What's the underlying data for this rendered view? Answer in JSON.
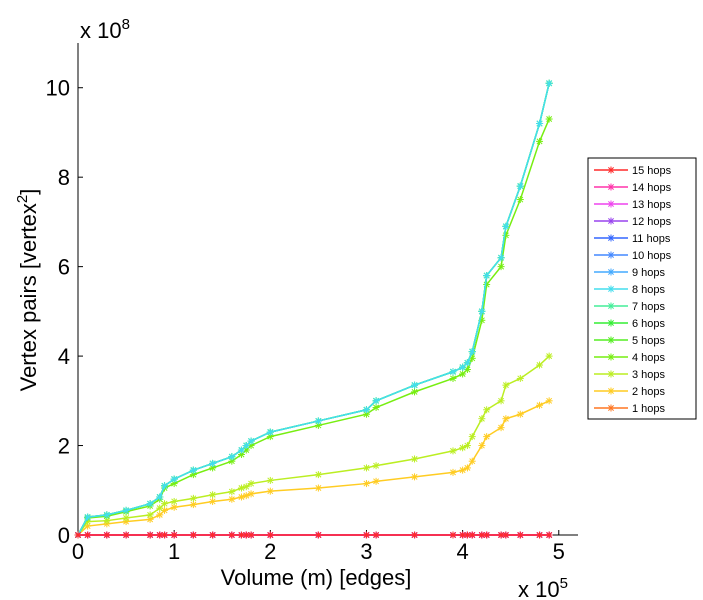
{
  "chart_data": {
    "type": "line",
    "xlabel": "Volume (m) [edges]",
    "ylabel": "Vertex pairs [vertex",
    "ylabel_sup": "2",
    "ylabel_close": "]",
    "x_multiplier": "x 10",
    "x_multiplier_exp": "5",
    "y_multiplier": "x 10",
    "y_multiplier_exp": "8",
    "xlim": [
      0,
      5.2
    ],
    "ylim": [
      0,
      11
    ],
    "xticks": [
      0,
      1,
      2,
      3,
      4,
      5
    ],
    "xtick_labels": [
      "0",
      "1",
      "2",
      "3",
      "4",
      "5"
    ],
    "yticks": [
      0,
      2,
      4,
      6,
      8,
      10
    ],
    "ytick_labels": [
      "0",
      "2",
      "4",
      "6",
      "8",
      "10"
    ],
    "grid": false,
    "legend_position": "right",
    "x": [
      0,
      0.1,
      0.3,
      0.5,
      0.75,
      0.85,
      0.9,
      1.0,
      1.2,
      1.4,
      1.6,
      1.7,
      1.75,
      1.8,
      2.0,
      2.5,
      3.0,
      3.1,
      3.5,
      3.9,
      4.0,
      4.05,
      4.1,
      4.2,
      4.25,
      4.4,
      4.45,
      4.6,
      4.8,
      4.9
    ],
    "series": [
      {
        "name": "15 hops",
        "color": "#ff2a2a",
        "values": [
          0,
          0,
          0,
          0,
          0,
          0,
          0,
          0,
          0,
          0,
          0,
          0,
          0,
          0,
          0,
          0,
          0,
          0,
          0,
          0,
          0,
          0,
          0,
          0,
          0,
          0,
          0,
          0,
          0,
          0
        ]
      },
      {
        "name": "14 hops",
        "color": "#ff33aa",
        "values": [
          0,
          0,
          0,
          0,
          0,
          0,
          0,
          0,
          0,
          0,
          0,
          0,
          0,
          0,
          0,
          0,
          0,
          0,
          0,
          0,
          0,
          0,
          0,
          0,
          0,
          0,
          0,
          0,
          0,
          0
        ]
      },
      {
        "name": "13 hops",
        "color": "#ee44ee",
        "values": [
          0,
          0,
          0,
          0,
          0,
          0,
          0,
          0,
          0,
          0,
          0,
          0,
          0,
          0,
          0,
          0,
          0,
          0,
          0,
          0,
          0,
          0,
          0,
          0,
          0,
          0,
          0,
          0,
          0,
          0
        ]
      },
      {
        "name": "12 hops",
        "color": "#9944ee",
        "values": [
          0,
          0,
          0,
          0,
          0,
          0,
          0,
          0,
          0,
          0,
          0,
          0,
          0,
          0,
          0,
          0,
          0,
          0,
          0,
          0,
          0,
          0,
          0,
          0,
          0,
          0,
          0,
          0,
          0,
          0
        ]
      },
      {
        "name": "11 hops",
        "color": "#3366ff",
        "values": [
          0,
          0,
          0,
          0,
          0,
          0,
          0,
          0,
          0,
          0,
          0,
          0,
          0,
          0,
          0,
          0,
          0,
          0,
          0,
          0,
          0,
          0,
          0,
          0,
          0,
          0,
          0,
          0,
          0,
          0
        ]
      },
      {
        "name": "10 hops",
        "color": "#4488ff",
        "values": [
          0,
          0,
          0,
          0,
          0,
          0,
          0,
          0,
          0,
          0,
          0,
          0,
          0,
          0,
          0,
          0,
          0,
          0,
          0,
          0,
          0,
          0,
          0,
          0,
          0,
          0,
          0,
          0,
          0,
          0
        ]
      },
      {
        "name": "9 hops",
        "color": "#44aaff",
        "values": [
          0,
          0,
          0,
          0,
          0,
          0,
          0,
          0,
          0,
          0,
          0,
          0,
          0,
          0,
          0,
          0,
          0,
          0,
          0,
          0,
          0,
          0,
          0,
          0,
          0,
          0,
          0,
          0,
          0,
          0
        ]
      },
      {
        "name": "8 hops",
        "color": "#44ddee",
        "values": [
          0,
          0.4,
          0.45,
          0.55,
          0.7,
          0.85,
          1.1,
          1.25,
          1.45,
          1.6,
          1.75,
          1.9,
          2.0,
          2.1,
          2.3,
          2.55,
          2.8,
          3.0,
          3.35,
          3.65,
          3.75,
          3.85,
          4.1,
          5.0,
          5.8,
          6.2,
          6.9,
          7.8,
          9.2,
          10.1
        ]
      },
      {
        "name": "7 hops",
        "color": "#44ee99",
        "values": [
          0,
          0.4,
          0.45,
          0.55,
          0.7,
          0.85,
          1.1,
          1.25,
          1.45,
          1.6,
          1.75,
          1.9,
          2.0,
          2.1,
          2.3,
          2.55,
          2.8,
          3.0,
          3.35,
          3.65,
          3.75,
          3.85,
          4.1,
          5.0,
          5.8,
          6.2,
          6.9,
          7.8,
          9.2,
          10.1
        ]
      },
      {
        "name": "6 hops",
        "color": "#33ee33",
        "values": [
          0,
          0.4,
          0.45,
          0.55,
          0.7,
          0.85,
          1.1,
          1.25,
          1.45,
          1.6,
          1.75,
          1.9,
          2.0,
          2.1,
          2.3,
          2.55,
          2.8,
          3.0,
          3.35,
          3.65,
          3.75,
          3.85,
          4.1,
          5.0,
          5.8,
          6.2,
          6.9,
          7.8,
          9.2,
          10.1
        ]
      },
      {
        "name": "5 hops",
        "color": "#55ee22",
        "values": [
          0,
          0.4,
          0.45,
          0.55,
          0.7,
          0.85,
          1.1,
          1.25,
          1.45,
          1.6,
          1.75,
          1.9,
          2.0,
          2.1,
          2.3,
          2.55,
          2.8,
          3.0,
          3.35,
          3.65,
          3.75,
          3.85,
          4.1,
          5.0,
          5.8,
          6.2,
          6.9,
          7.8,
          9.2,
          10.1
        ]
      },
      {
        "name": "4 hops",
        "color": "#77ee11",
        "values": [
          0,
          0.38,
          0.42,
          0.52,
          0.65,
          0.8,
          1.05,
          1.15,
          1.35,
          1.5,
          1.65,
          1.8,
          1.9,
          2.0,
          2.2,
          2.45,
          2.7,
          2.85,
          3.2,
          3.5,
          3.6,
          3.7,
          3.95,
          4.8,
          5.6,
          6.0,
          6.7,
          7.5,
          8.8,
          9.3
        ]
      },
      {
        "name": "3 hops",
        "color": "#bbee22",
        "values": [
          0,
          0.3,
          0.32,
          0.38,
          0.45,
          0.6,
          0.7,
          0.75,
          0.82,
          0.9,
          0.97,
          1.05,
          1.08,
          1.15,
          1.22,
          1.35,
          1.5,
          1.55,
          1.7,
          1.88,
          1.95,
          2.0,
          2.2,
          2.6,
          2.8,
          3.0,
          3.35,
          3.5,
          3.8,
          4.0
        ]
      },
      {
        "name": "2 hops",
        "color": "#ffcc22",
        "values": [
          0,
          0.2,
          0.25,
          0.3,
          0.35,
          0.45,
          0.55,
          0.62,
          0.68,
          0.75,
          0.8,
          0.85,
          0.88,
          0.92,
          0.98,
          1.05,
          1.15,
          1.2,
          1.3,
          1.4,
          1.45,
          1.5,
          1.65,
          2.0,
          2.2,
          2.4,
          2.6,
          2.7,
          2.9,
          3.0
        ]
      },
      {
        "name": "1 hops",
        "color": "#ff7722",
        "values": [
          0,
          0,
          0,
          0,
          0,
          0,
          0,
          0,
          0,
          0,
          0,
          0,
          0,
          0,
          0,
          0,
          0,
          0,
          0,
          0,
          0,
          0,
          0,
          0,
          0,
          0,
          0,
          0,
          0,
          0
        ]
      }
    ]
  }
}
